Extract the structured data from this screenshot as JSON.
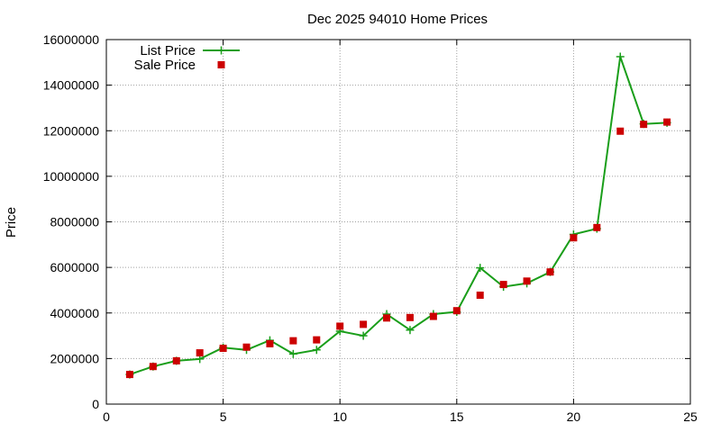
{
  "chart_data": {
    "type": "line",
    "title": "Dec 2025 94010 Home Prices",
    "xlabel": "",
    "ylabel": "Price",
    "xlim": [
      0,
      25
    ],
    "ylim": [
      0,
      16000000
    ],
    "x_ticks": [
      0,
      5,
      10,
      15,
      20,
      25
    ],
    "y_ticks": [
      0,
      2000000,
      4000000,
      6000000,
      8000000,
      10000000,
      12000000,
      14000000,
      16000000
    ],
    "grid": true,
    "legend_position": "top-left",
    "series": [
      {
        "name": "List Price",
        "style": "line-with-plus-markers",
        "color": "#1a9e1a",
        "points": [
          [
            1,
            1300000
          ],
          [
            2,
            1650000
          ],
          [
            3,
            1900000
          ],
          [
            4,
            1980000
          ],
          [
            5,
            2480000
          ],
          [
            6,
            2380000
          ],
          [
            7,
            2800000
          ],
          [
            8,
            2200000
          ],
          [
            9,
            2380000
          ],
          [
            10,
            3200000
          ],
          [
            11,
            3000000
          ],
          [
            12,
            3950000
          ],
          [
            13,
            3250000
          ],
          [
            14,
            3950000
          ],
          [
            15,
            4050000
          ],
          [
            16,
            5980000
          ],
          [
            17,
            5150000
          ],
          [
            18,
            5300000
          ],
          [
            19,
            5800000
          ],
          [
            20,
            7450000
          ],
          [
            21,
            7700000
          ],
          [
            22,
            15250000
          ],
          [
            23,
            12300000
          ],
          [
            24,
            12350000
          ]
        ]
      },
      {
        "name": "Sale Price",
        "style": "square-points",
        "color": "#cc0000",
        "points": [
          [
            1,
            1300000
          ],
          [
            2,
            1650000
          ],
          [
            3,
            1900000
          ],
          [
            4,
            2250000
          ],
          [
            5,
            2450000
          ],
          [
            6,
            2500000
          ],
          [
            7,
            2650000
          ],
          [
            8,
            2780000
          ],
          [
            9,
            2820000
          ],
          [
            10,
            3420000
          ],
          [
            11,
            3500000
          ],
          [
            12,
            3780000
          ],
          [
            13,
            3800000
          ],
          [
            14,
            3850000
          ],
          [
            15,
            4100000
          ],
          [
            16,
            4780000
          ],
          [
            17,
            5250000
          ],
          [
            18,
            5400000
          ],
          [
            19,
            5800000
          ],
          [
            20,
            7300000
          ],
          [
            21,
            7750000
          ],
          [
            22,
            11980000
          ],
          [
            23,
            12280000
          ],
          [
            24,
            12380000
          ]
        ]
      }
    ]
  }
}
